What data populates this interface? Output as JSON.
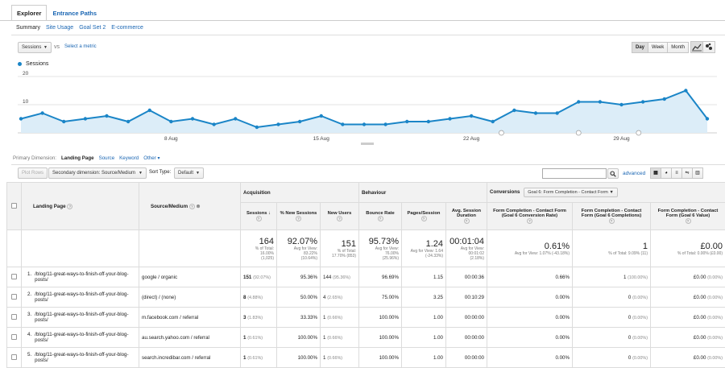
{
  "tabs": {
    "explorer": "Explorer",
    "entrance_paths": "Entrance Paths"
  },
  "subnav": {
    "summary": "Summary",
    "site_usage": "Site Usage",
    "goal_set": "Goal Set 2",
    "ecommerce": "E-commerce"
  },
  "metric": {
    "selected": "Sessions",
    "vs": "vs",
    "select_metric": "Select a metric"
  },
  "period": {
    "day": "Day",
    "week": "Week",
    "month": "Month",
    "active": "Day"
  },
  "chart": {
    "legend": "Sessions",
    "y_ticks": [
      "20",
      "10"
    ],
    "x_ticks": [
      "8 Aug",
      "15 Aug",
      "22 Aug",
      "29 Aug"
    ],
    "accent": "#1a85c7",
    "fill": "#dcedf8"
  },
  "chart_data": {
    "type": "area",
    "series": [
      {
        "name": "Sessions",
        "values": [
          5,
          7,
          4,
          5,
          6,
          4,
          8,
          4,
          5,
          3,
          5,
          2,
          3,
          4,
          6,
          3,
          3,
          3,
          4,
          4,
          5,
          6,
          4,
          8,
          7,
          7,
          11,
          11,
          10,
          11,
          12,
          15,
          5
        ]
      }
    ],
    "ylim": [
      0,
      20
    ],
    "x_ticks": [
      "8 Aug",
      "15 Aug",
      "22 Aug",
      "29 Aug"
    ]
  },
  "dimension": {
    "label": "Primary Dimension:",
    "landing_page": "Landing Page",
    "source": "Source",
    "keyword": "Keyword",
    "other": "Other"
  },
  "controls": {
    "plot_rows": "Plot Rows",
    "secondary": "Secondary dimension: Source/Medium",
    "sort_type": "Sort Type:",
    "sort_default": "Default",
    "advanced": "advanced"
  },
  "groups": {
    "acquisition": "Acquisition",
    "behaviour": "Behaviour",
    "conversions": "Conversions",
    "goal_select": "Goal 6: Form Completion - Contact Form"
  },
  "headers": {
    "landing_page": "Landing Page",
    "source_medium": "Source/Medium",
    "sessions": "Sessions",
    "new_sessions": "% New Sessions",
    "new_users": "New Users",
    "bounce_rate": "Bounce Rate",
    "pages_session": "Pages/Session",
    "avg_duration": "Avg. Session Duration",
    "conv_rate": "Form Completion - Contact Form (Goal 6 Conversion Rate)",
    "completions": "Form Completion - Contact Form (Goal 6 Completions)",
    "value": "Form Completion - Contact Form (Goal 6 Value)"
  },
  "totals": {
    "sessions": {
      "big": "164",
      "l1": "% of Total:",
      "l2": "16.00%",
      "l3": "(1,025)"
    },
    "new_sessions": {
      "big": "92.07%",
      "l1": "Avg for View:",
      "l2": "83.22%",
      "l3": "(10.64%)"
    },
    "new_users": {
      "big": "151",
      "l1": "% of Total:",
      "l2": "17.70% (853)"
    },
    "bounce_rate": {
      "big": "95.73%",
      "l1": "Avg for View:",
      "l2": "76.00%",
      "l3": "(25.96%)"
    },
    "pages_session": {
      "big": "1.24",
      "l1": "Avg for View: 1.64",
      "l2": "(-24.33%)"
    },
    "avg_duration": {
      "big": "00:01:04",
      "l1": "Avg for View:",
      "l2": "00:01:02",
      "l3": "(2.18%)"
    },
    "conv_rate": {
      "big": "0.61%",
      "l1": "Avg for View: 1.07% (-43.18%)"
    },
    "completions": {
      "big": "1",
      "l1": "% of Total: 9.09% (11)"
    },
    "value": {
      "big": "£0.00",
      "l1": "% of Total: 0.00% (£0.00)"
    }
  },
  "rows": [
    {
      "n": "1.",
      "page": "/blog/11-great-ways-to-finish-off-your-blog-posts/",
      "src": "google / organic",
      "s": "151",
      "sp": "(92.07%)",
      "ns": "95.36%",
      "nu": "144",
      "nup": "(95.36%)",
      "br": "96.69%",
      "ps": "1.15",
      "ad": "00:00:36",
      "cr": "0.66%",
      "c": "1",
      "cp": "(100.00%)",
      "v": "£0.00",
      "vp": "(0.00%)"
    },
    {
      "n": "2.",
      "page": "/blog/11-great-ways-to-finish-off-your-blog-posts/",
      "src": "(direct) / (none)",
      "s": "8",
      "sp": "(4.88%)",
      "ns": "50.00%",
      "nu": "4",
      "nup": "(2.65%)",
      "br": "75.00%",
      "ps": "3.25",
      "ad": "00:10:29",
      "cr": "0.00%",
      "c": "0",
      "cp": "(0.00%)",
      "v": "£0.00",
      "vp": "(0.00%)"
    },
    {
      "n": "3.",
      "page": "/blog/11-great-ways-to-finish-off-your-blog-posts/",
      "src": "m.facebook.com / referral",
      "s": "3",
      "sp": "(1.83%)",
      "ns": "33.33%",
      "nu": "1",
      "nup": "(0.66%)",
      "br": "100.00%",
      "ps": "1.00",
      "ad": "00:00:00",
      "cr": "0.00%",
      "c": "0",
      "cp": "(0.00%)",
      "v": "£0.00",
      "vp": "(0.00%)"
    },
    {
      "n": "4.",
      "page": "/blog/11-great-ways-to-finish-off-your-blog-posts/",
      "src": "au.search.yahoo.com / referral",
      "s": "1",
      "sp": "(0.61%)",
      "ns": "100.00%",
      "nu": "1",
      "nup": "(0.66%)",
      "br": "100.00%",
      "ps": "1.00",
      "ad": "00:00:00",
      "cr": "0.00%",
      "c": "0",
      "cp": "(0.00%)",
      "v": "£0.00",
      "vp": "(0.00%)"
    },
    {
      "n": "5.",
      "page": "/blog/11-great-ways-to-finish-off-your-blog-posts/",
      "src": "search.incredibar.com / referral",
      "s": "1",
      "sp": "(0.61%)",
      "ns": "100.00%",
      "nu": "1",
      "nup": "(0.66%)",
      "br": "100.00%",
      "ps": "1.00",
      "ad": "00:00:00",
      "cr": "0.00%",
      "c": "0",
      "cp": "(0.00%)",
      "v": "£0.00",
      "vp": "(0.00%)"
    }
  ]
}
